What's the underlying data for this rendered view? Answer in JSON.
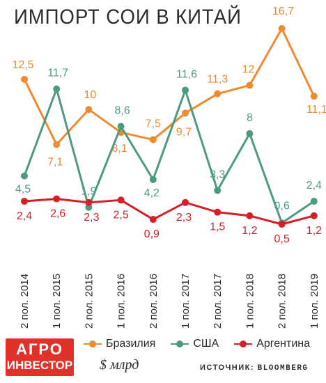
{
  "chart_data": {
    "type": "line",
    "title": "ИМПОРТ СОИ В КИТАЙ",
    "categories": [
      "2 пол. 2014",
      "1 пол. 2015",
      "2 пол. 2015",
      "1 пол. 2016",
      "2 пол. 2016",
      "1 пол. 2017",
      "2 пол. 2017",
      "1 пол. 2018",
      "2 пол. 2018",
      "1 пол. 2019"
    ],
    "series": [
      {
        "name": "Бразилия",
        "color": "#ef8a2e",
        "values": [
          12.5,
          7.1,
          10,
          8.1,
          7.5,
          9.7,
          11.3,
          12,
          16.7,
          11.1
        ],
        "labels": [
          "12,5",
          "7,1",
          "10",
          "8,1",
          "7,5",
          "9,7",
          "11,3",
          "12",
          "16,7",
          "11,1"
        ]
      },
      {
        "name": "США",
        "color": "#4e9a80",
        "values": [
          4.5,
          11.7,
          1.9,
          8.6,
          4.2,
          11.6,
          3.3,
          8,
          0.6,
          2.4
        ],
        "labels": [
          "4,5",
          "11,7",
          "1,9",
          "8,6",
          "4,2",
          "11,6",
          "3,3",
          "8",
          "0,6",
          "2,4"
        ]
      },
      {
        "name": "Аргентина",
        "color": "#d61f26",
        "values": [
          2.4,
          2.6,
          2.3,
          2.5,
          0.9,
          2.3,
          1.5,
          1.2,
          0.5,
          1.2
        ],
        "labels": [
          "2,4",
          "2,6",
          "2,3",
          "2,5",
          "0,9",
          "2,3",
          "1,5",
          "1,2",
          "0,5",
          "1,2"
        ]
      }
    ],
    "unit": "$ млрд",
    "legend_position": "bottom",
    "grid": false
  },
  "footer": {
    "logo_line1": "АГРО",
    "logo_line2": "ИНВЕСТОР",
    "unit_label": "$ млрд",
    "source_prefix": "ИСТОЧНИК:",
    "source_name": "BLOOMBERG"
  }
}
